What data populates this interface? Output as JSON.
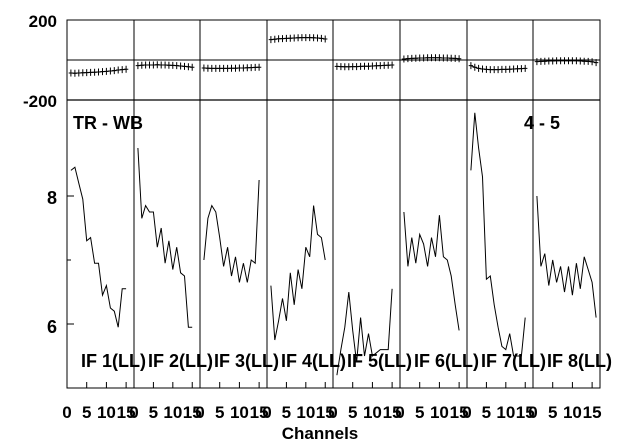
{
  "chart_data": {
    "type": "line",
    "xlabel": "Channels",
    "baseline_label": "TR - WB",
    "scan_label": "4 - 5",
    "phase_axis": {
      "ticks": [
        "200",
        "-200"
      ],
      "ylim": [
        -200,
        200
      ]
    },
    "amp_axis": {
      "ticks": [
        "8",
        "6"
      ],
      "ylim": [
        5.0,
        9.5
      ]
    },
    "xlim": [
      0,
      17
    ],
    "x_ticks": [
      "0",
      "5",
      "10",
      "15"
    ],
    "x_tick_values": [
      0,
      5,
      10,
      15
    ],
    "channels": [
      1,
      2,
      3,
      4,
      5,
      6,
      7,
      8,
      9,
      10,
      11,
      12,
      13,
      14,
      15,
      16
    ],
    "panels": [
      {
        "label": "IF 1(LL)",
        "channels": [
          1,
          2,
          3,
          4,
          5,
          6,
          7,
          8,
          9,
          10,
          11,
          12,
          13,
          14,
          15
        ],
        "phase": [
          -65,
          -66,
          -65,
          -64,
          -63,
          -62,
          -61,
          -60,
          -58,
          -57,
          -55,
          -53,
          -50,
          -48,
          -46
        ],
        "amplitude": [
          8.4,
          8.45,
          8.2,
          7.95,
          7.3,
          7.35,
          6.95,
          6.95,
          6.45,
          6.6,
          6.25,
          6.2,
          5.95,
          6.55,
          6.55
        ]
      },
      {
        "label": "IF 2(LL)",
        "channels": [
          1,
          2,
          3,
          4,
          5,
          6,
          7,
          8,
          9,
          10,
          11,
          12,
          13,
          14,
          15
        ],
        "phase": [
          -28,
          -26,
          -25,
          -25,
          -25,
          -24,
          -25,
          -25,
          -26,
          -27,
          -28,
          -30,
          -32,
          -34,
          -36
        ],
        "amplitude": [
          8.75,
          7.65,
          7.85,
          7.75,
          7.75,
          7.2,
          7.5,
          6.95,
          7.3,
          6.85,
          7.2,
          6.8,
          6.75,
          5.95,
          5.95
        ]
      },
      {
        "label": "IF 3(LL)",
        "channels": [
          1,
          2,
          3,
          4,
          5,
          6,
          7,
          8,
          9,
          10,
          11,
          12,
          13,
          14,
          15
        ],
        "phase": [
          -40,
          -41,
          -42,
          -42,
          -42,
          -42,
          -42,
          -41,
          -41,
          -40,
          -40,
          -39,
          -38,
          -37,
          -36
        ],
        "amplitude": [
          7.0,
          7.65,
          7.85,
          7.75,
          7.35,
          6.9,
          7.2,
          6.75,
          7.05,
          6.65,
          6.95,
          6.65,
          7.0,
          6.95,
          8.25
        ]
      },
      {
        "label": "IF 4(LL)",
        "channels": [
          1,
          2,
          3,
          4,
          5,
          6,
          7,
          8,
          9,
          10,
          11,
          12,
          13,
          14,
          15
        ],
        "phase": [
          102,
          104,
          106,
          107,
          108,
          109,
          110,
          111,
          112,
          112,
          112,
          111,
          110,
          108,
          105
        ],
        "amplitude": [
          6.6,
          5.75,
          6.05,
          6.4,
          6.05,
          6.8,
          6.3,
          6.85,
          6.55,
          7.2,
          7.05,
          7.85,
          7.4,
          7.35,
          7.0
        ]
      },
      {
        "label": "IF 5(LL)",
        "channels": [
          1,
          2,
          3,
          4,
          5,
          6,
          7,
          8,
          9,
          10,
          11,
          12,
          13,
          14,
          15
        ],
        "phase": [
          -32,
          -33,
          -34,
          -34,
          -33,
          -33,
          -32,
          -31,
          -31,
          -30,
          -29,
          -28,
          -27,
          -26,
          -25
        ],
        "amplitude": [
          5.2,
          5.6,
          5.95,
          6.5,
          5.9,
          5.4,
          6.1,
          5.5,
          5.85,
          5.5,
          5.55,
          5.6,
          5.6,
          5.6,
          6.55
        ]
      },
      {
        "label": "IF 6(LL)",
        "channels": [
          1,
          2,
          3,
          4,
          5,
          6,
          7,
          8,
          9,
          10,
          11,
          12,
          13,
          14,
          15
        ],
        "phase": [
          5,
          7,
          8,
          9,
          10,
          10,
          11,
          11,
          11,
          11,
          10,
          10,
          9,
          8,
          6
        ],
        "amplitude": [
          7.75,
          6.9,
          7.35,
          6.95,
          7.4,
          7.25,
          6.9,
          7.35,
          7.05,
          7.7,
          7.05,
          7.0,
          6.75,
          6.3,
          5.9
        ]
      },
      {
        "label": "IF 7(LL)",
        "channels": [
          1,
          2,
          3,
          4,
          5,
          6,
          7,
          8,
          9,
          10,
          11,
          12,
          13,
          14,
          15
        ],
        "phase": [
          -28,
          -36,
          -42,
          -45,
          -47,
          -48,
          -48,
          -48,
          -47,
          -47,
          -46,
          -45,
          -44,
          -43,
          -42
        ],
        "amplitude": [
          8.4,
          9.3,
          8.75,
          8.3,
          6.7,
          6.75,
          6.3,
          5.95,
          5.65,
          5.6,
          5.85,
          5.5,
          5.5,
          5.5,
          6.1
        ]
      },
      {
        "label": "IF 8(LL)",
        "channels": [
          1,
          2,
          3,
          4,
          5,
          6,
          7,
          8,
          9,
          10,
          11,
          12,
          13,
          14,
          15,
          16
        ],
        "phase": [
          -8,
          -7,
          -6,
          -5,
          -5,
          -4,
          -4,
          -4,
          -4,
          -4,
          -4,
          -5,
          -6,
          -7,
          -9,
          -13
        ],
        "amplitude": [
          8.0,
          6.9,
          7.1,
          6.6,
          7.0,
          6.65,
          6.9,
          6.5,
          6.9,
          6.45,
          6.95,
          6.55,
          7.05,
          6.85,
          6.65,
          6.1
        ]
      }
    ]
  }
}
